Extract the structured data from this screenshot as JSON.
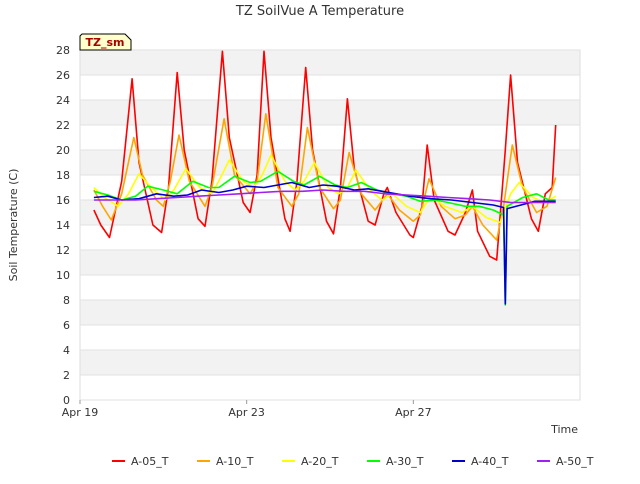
{
  "chart_data": {
    "type": "line",
    "title": "TZ SoilVue A Temperature",
    "xlabel": "Time",
    "ylabel": "Soil Temperature (C)",
    "badge": "TZ_sm",
    "ylim": [
      0,
      28
    ],
    "xlim": [
      "2023-04-19",
      "2023-05-01"
    ],
    "yticks": [
      0,
      2,
      4,
      6,
      8,
      10,
      12,
      14,
      16,
      18,
      20,
      22,
      24,
      26,
      28
    ],
    "xticks": [
      "Apr 19",
      "Apr 23",
      "Apr 27"
    ],
    "xtick_dates": [
      "2023-04-19",
      "2023-04-23",
      "2023-04-27"
    ],
    "grid": "horizontal bands",
    "legend": "bottom",
    "series": [
      {
        "name": "A-05_T",
        "color": "#ff0000",
        "points": [
          [
            "2023-04-19 08:00",
            15.2
          ],
          [
            "2023-04-19 12:00",
            14.0
          ],
          [
            "2023-04-19 17:00",
            13.0
          ],
          [
            "2023-04-20 00:00",
            17.5
          ],
          [
            "2023-04-20 06:00",
            25.7
          ],
          [
            "2023-04-20 10:00",
            19.0
          ],
          [
            "2023-04-20 18:00",
            14.0
          ],
          [
            "2023-04-20 23:00",
            13.4
          ],
          [
            "2023-04-21 03:00",
            17.0
          ],
          [
            "2023-04-21 08:00",
            26.2
          ],
          [
            "2023-04-21 12:00",
            20.0
          ],
          [
            "2023-04-21 20:00",
            14.5
          ],
          [
            "2023-04-22 00:00",
            13.9
          ],
          [
            "2023-04-22 04:00",
            17.5
          ],
          [
            "2023-04-22 10:00",
            27.9
          ],
          [
            "2023-04-22 14:00",
            21.0
          ],
          [
            "2023-04-22 22:00",
            15.8
          ],
          [
            "2023-04-23 02:00",
            15.0
          ],
          [
            "2023-04-23 06:00",
            18.0
          ],
          [
            "2023-04-23 10:00",
            27.9
          ],
          [
            "2023-04-23 14:00",
            21.0
          ],
          [
            "2023-04-23 22:00",
            14.5
          ],
          [
            "2023-04-24 01:00",
            13.5
          ],
          [
            "2023-04-24 05:00",
            17.5
          ],
          [
            "2023-04-24 10:00",
            26.6
          ],
          [
            "2023-04-24 14:00",
            20.0
          ],
          [
            "2023-04-24 22:00",
            14.3
          ],
          [
            "2023-04-25 02:00",
            13.3
          ],
          [
            "2023-04-25 06:00",
            17.0
          ],
          [
            "2023-04-25 10:00",
            24.1
          ],
          [
            "2023-04-25 14:00",
            18.5
          ],
          [
            "2023-04-25 22:00",
            14.3
          ],
          [
            "2023-04-26 02:00",
            14.0
          ],
          [
            "2023-04-26 07:00",
            16.5
          ],
          [
            "2023-04-26 09:00",
            17.0
          ],
          [
            "2023-04-26 14:00",
            15.0
          ],
          [
            "2023-04-26 22:00",
            13.2
          ],
          [
            "2023-04-27 00:00",
            13.0
          ],
          [
            "2023-04-27 05:00",
            15.5
          ],
          [
            "2023-04-27 08:00",
            20.4
          ],
          [
            "2023-04-27 12:00",
            16.0
          ],
          [
            "2023-04-27 20:00",
            13.5
          ],
          [
            "2023-04-28 00:00",
            13.2
          ],
          [
            "2023-04-28 06:00",
            15.0
          ],
          [
            "2023-04-28 10:00",
            16.8
          ],
          [
            "2023-04-28 13:00",
            13.5
          ],
          [
            "2023-04-28 20:00",
            11.5
          ],
          [
            "2023-04-29 00:00",
            11.2
          ],
          [
            "2023-04-29 05:00",
            20.0
          ],
          [
            "2023-04-29 08:00",
            26.0
          ],
          [
            "2023-04-29 12:00",
            19.0
          ],
          [
            "2023-04-29 20:00",
            14.5
          ],
          [
            "2023-04-30 00:00",
            13.5
          ],
          [
            "2023-04-30 04:00",
            16.5
          ],
          [
            "2023-04-30 08:00",
            17.0
          ],
          [
            "2023-04-30 10:00",
            22.0
          ]
        ]
      },
      {
        "name": "A-10_T",
        "color": "#ffa500",
        "points": [
          [
            "2023-04-19 08:00",
            16.8
          ],
          [
            "2023-04-19 13:00",
            15.5
          ],
          [
            "2023-04-19 18:00",
            14.4
          ],
          [
            "2023-04-20 00:00",
            16.5
          ],
          [
            "2023-04-20 07:00",
            21.0
          ],
          [
            "2023-04-20 12:00",
            18.0
          ],
          [
            "2023-04-20 20:00",
            16.0
          ],
          [
            "2023-04-21 00:00",
            15.5
          ],
          [
            "2023-04-21 04:00",
            17.5
          ],
          [
            "2023-04-21 09:00",
            21.2
          ],
          [
            "2023-04-21 15:00",
            17.5
          ],
          [
            "2023-04-22 00:00",
            15.5
          ],
          [
            "2023-04-22 04:00",
            17.0
          ],
          [
            "2023-04-22 11:00",
            22.5
          ],
          [
            "2023-04-22 17:00",
            18.0
          ],
          [
            "2023-04-23 02:00",
            16.5
          ],
          [
            "2023-04-23 06:00",
            17.5
          ],
          [
            "2023-04-23 11:00",
            22.9
          ],
          [
            "2023-04-23 18:00",
            17.0
          ],
          [
            "2023-04-24 02:00",
            15.5
          ],
          [
            "2023-04-24 06:00",
            16.5
          ],
          [
            "2023-04-24 11:00",
            21.8
          ],
          [
            "2023-04-24 18:00",
            17.0
          ],
          [
            "2023-04-25 02:00",
            15.3
          ],
          [
            "2023-04-25 06:00",
            16.0
          ],
          [
            "2023-04-25 11:00",
            19.8
          ],
          [
            "2023-04-25 18:00",
            16.5
          ],
          [
            "2023-04-26 02:00",
            15.2
          ],
          [
            "2023-04-26 09:00",
            16.5
          ],
          [
            "2023-04-26 16:00",
            15.2
          ],
          [
            "2023-04-27 00:00",
            14.3
          ],
          [
            "2023-04-27 04:00",
            14.8
          ],
          [
            "2023-04-27 09:00",
            17.7
          ],
          [
            "2023-04-27 16:00",
            15.5
          ],
          [
            "2023-04-28 00:00",
            14.5
          ],
          [
            "2023-04-28 06:00",
            14.8
          ],
          [
            "2023-04-28 10:00",
            15.5
          ],
          [
            "2023-04-28 16:00",
            14.0
          ],
          [
            "2023-04-29 00:00",
            12.8
          ],
          [
            "2023-04-29 04:00",
            15.5
          ],
          [
            "2023-04-29 09:00",
            20.4
          ],
          [
            "2023-04-29 15:00",
            17.0
          ],
          [
            "2023-04-29 23:00",
            15.0
          ],
          [
            "2023-04-30 05:00",
            15.5
          ],
          [
            "2023-04-30 10:00",
            17.8
          ]
        ]
      },
      {
        "name": "A-20_T",
        "color": "#ffff00",
        "points": [
          [
            "2023-04-19 08:00",
            17.0
          ],
          [
            "2023-04-19 14:00",
            16.2
          ],
          [
            "2023-04-19 22:00",
            15.5
          ],
          [
            "2023-04-20 04:00",
            16.5
          ],
          [
            "2023-04-20 10:00",
            18.1
          ],
          [
            "2023-04-20 17:00",
            17.0
          ],
          [
            "2023-04-21 01:00",
            16.0
          ],
          [
            "2023-04-21 06:00",
            16.8
          ],
          [
            "2023-04-21 13:00",
            18.5
          ],
          [
            "2023-04-21 21:00",
            17.0
          ],
          [
            "2023-04-22 04:00",
            16.5
          ],
          [
            "2023-04-22 09:00",
            17.8
          ],
          [
            "2023-04-22 14:00",
            19.2
          ],
          [
            "2023-04-22 22:00",
            17.5
          ],
          [
            "2023-04-23 04:00",
            17.0
          ],
          [
            "2023-04-23 09:00",
            18.0
          ],
          [
            "2023-04-23 14:00",
            19.6
          ],
          [
            "2023-04-23 22:00",
            17.5
          ],
          [
            "2023-04-24 04:00",
            16.8
          ],
          [
            "2023-04-24 09:00",
            17.5
          ],
          [
            "2023-04-24 15:00",
            19.0
          ],
          [
            "2023-04-24 23:00",
            17.0
          ],
          [
            "2023-04-25 05:00",
            16.5
          ],
          [
            "2023-04-25 10:00",
            17.0
          ],
          [
            "2023-04-25 15:00",
            18.4
          ],
          [
            "2023-04-25 23:00",
            16.8
          ],
          [
            "2023-04-26 06:00",
            16.0
          ],
          [
            "2023-04-26 12:00",
            16.5
          ],
          [
            "2023-04-26 20:00",
            15.5
          ],
          [
            "2023-04-27 04:00",
            15.0
          ],
          [
            "2023-04-27 10:00",
            16.3
          ],
          [
            "2023-04-27 18:00",
            15.5
          ],
          [
            "2023-04-28 04:00",
            15.0
          ],
          [
            "2023-04-28 10:00",
            15.5
          ],
          [
            "2023-04-28 18:00",
            14.6
          ],
          [
            "2023-04-29 02:00",
            14.2
          ],
          [
            "2023-04-29 08:00",
            16.5
          ],
          [
            "2023-04-29 13:00",
            17.4
          ],
          [
            "2023-04-29 21:00",
            16.2
          ],
          [
            "2023-04-30 04:00",
            15.8
          ],
          [
            "2023-04-30 10:00",
            16.3
          ]
        ]
      },
      {
        "name": "A-30_T",
        "color": "#00ff00",
        "points": [
          [
            "2023-04-19 08:00",
            16.7
          ],
          [
            "2023-04-19 16:00",
            16.4
          ],
          [
            "2023-04-20 00:00",
            16.0
          ],
          [
            "2023-04-20 08:00",
            16.3
          ],
          [
            "2023-04-20 15:00",
            17.1
          ],
          [
            "2023-04-21 00:00",
            16.8
          ],
          [
            "2023-04-21 08:00",
            16.5
          ],
          [
            "2023-04-21 17:00",
            17.5
          ],
          [
            "2023-04-22 02:00",
            17.0
          ],
          [
            "2023-04-22 08:00",
            17.0
          ],
          [
            "2023-04-22 17:00",
            17.9
          ],
          [
            "2023-04-23 02:00",
            17.4
          ],
          [
            "2023-04-23 08:00",
            17.5
          ],
          [
            "2023-04-23 18:00",
            18.3
          ],
          [
            "2023-04-24 03:00",
            17.5
          ],
          [
            "2023-04-24 09:00",
            17.2
          ],
          [
            "2023-04-24 18:00",
            17.9
          ],
          [
            "2023-04-25 03:00",
            17.2
          ],
          [
            "2023-04-25 10:00",
            17.0
          ],
          [
            "2023-04-25 18:00",
            17.4
          ],
          [
            "2023-04-26 03:00",
            16.8
          ],
          [
            "2023-04-26 12:00",
            16.5
          ],
          [
            "2023-04-26 20:00",
            16.3
          ],
          [
            "2023-04-27 04:00",
            15.9
          ],
          [
            "2023-04-27 13:00",
            16.0
          ],
          [
            "2023-04-27 20:00",
            15.8
          ],
          [
            "2023-04-28 06:00",
            15.5
          ],
          [
            "2023-04-28 14:00",
            15.5
          ],
          [
            "2023-04-28 22:00",
            15.2
          ],
          [
            "2023-04-29 04:00",
            14.8
          ],
          [
            "2023-04-29 05:00",
            7.6
          ],
          [
            "2023-04-29 06:00",
            15.5
          ],
          [
            "2023-04-29 15:00",
            16.2
          ],
          [
            "2023-04-29 23:00",
            16.5
          ],
          [
            "2023-04-30 06:00",
            16.0
          ],
          [
            "2023-04-30 10:00",
            16.0
          ]
        ]
      },
      {
        "name": "A-40_T",
        "color": "#0000cd",
        "points": [
          [
            "2023-04-19 08:00",
            16.2
          ],
          [
            "2023-04-19 16:00",
            16.3
          ],
          [
            "2023-04-20 00:00",
            16.0
          ],
          [
            "2023-04-20 10:00",
            16.1
          ],
          [
            "2023-04-20 20:00",
            16.5
          ],
          [
            "2023-04-21 06:00",
            16.3
          ],
          [
            "2023-04-21 14:00",
            16.4
          ],
          [
            "2023-04-21 22:00",
            16.8
          ],
          [
            "2023-04-22 08:00",
            16.6
          ],
          [
            "2023-04-22 16:00",
            16.8
          ],
          [
            "2023-04-23 00:00",
            17.1
          ],
          [
            "2023-04-23 10:00",
            17.0
          ],
          [
            "2023-04-23 18:00",
            17.2
          ],
          [
            "2023-04-24 02:00",
            17.4
          ],
          [
            "2023-04-24 12:00",
            17.0
          ],
          [
            "2023-04-24 20:00",
            17.2
          ],
          [
            "2023-04-25 04:00",
            17.1
          ],
          [
            "2023-04-25 14:00",
            16.8
          ],
          [
            "2023-04-25 22:00",
            16.9
          ],
          [
            "2023-04-26 10:00",
            16.6
          ],
          [
            "2023-04-26 22:00",
            16.3
          ],
          [
            "2023-04-27 10:00",
            16.1
          ],
          [
            "2023-04-27 22:00",
            16.0
          ],
          [
            "2023-04-28 10:00",
            15.8
          ],
          [
            "2023-04-28 22:00",
            15.6
          ],
          [
            "2023-04-29 04:00",
            15.4
          ],
          [
            "2023-04-29 05:00",
            7.7
          ],
          [
            "2023-04-29 06:00",
            15.3
          ],
          [
            "2023-04-29 14:00",
            15.6
          ],
          [
            "2023-04-29 22:00",
            15.9
          ],
          [
            "2023-04-30 10:00",
            15.9
          ]
        ]
      },
      {
        "name": "A-50_T",
        "color": "#a020f0",
        "points": [
          [
            "2023-04-19 08:00",
            16.0
          ],
          [
            "2023-04-19 20:00",
            16.0
          ],
          [
            "2023-04-20 08:00",
            16.0
          ],
          [
            "2023-04-20 20:00",
            16.1
          ],
          [
            "2023-04-21 08:00",
            16.2
          ],
          [
            "2023-04-21 20:00",
            16.3
          ],
          [
            "2023-04-22 08:00",
            16.4
          ],
          [
            "2023-04-22 20:00",
            16.5
          ],
          [
            "2023-04-23 08:00",
            16.6
          ],
          [
            "2023-04-23 20:00",
            16.7
          ],
          [
            "2023-04-24 08:00",
            16.7
          ],
          [
            "2023-04-24 20:00",
            16.8
          ],
          [
            "2023-04-25 08:00",
            16.7
          ],
          [
            "2023-04-25 20:00",
            16.7
          ],
          [
            "2023-04-26 08:00",
            16.5
          ],
          [
            "2023-04-26 20:00",
            16.4
          ],
          [
            "2023-04-27 08:00",
            16.3
          ],
          [
            "2023-04-27 20:00",
            16.2
          ],
          [
            "2023-04-28 08:00",
            16.1
          ],
          [
            "2023-04-28 20:00",
            16.0
          ],
          [
            "2023-04-29 08:00",
            15.8
          ],
          [
            "2023-04-29 20:00",
            15.8
          ],
          [
            "2023-04-30 10:00",
            15.8
          ]
        ]
      }
    ]
  }
}
